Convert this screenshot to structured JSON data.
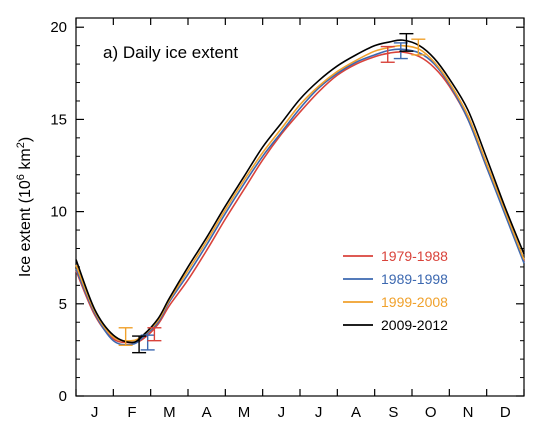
{
  "chart_data": {
    "type": "line",
    "title": "a) Daily ice extent",
    "ylabel_main": "Ice extent (10",
    "ylabel_sup1": "6",
    "ylabel_mid": " km",
    "ylabel_sup2": "2",
    "ylabel_end": ")",
    "xlabel": "",
    "ylim": [
      0,
      20.5
    ],
    "yticks": [
      0,
      5,
      10,
      15,
      20
    ],
    "xlim": [
      0,
      12
    ],
    "categories": [
      "J",
      "F",
      "M",
      "A",
      "M",
      "J",
      "J",
      "A",
      "S",
      "O",
      "N",
      "D"
    ],
    "grid": false,
    "legend_position": "bottom-right",
    "series": [
      {
        "name": "1979-1988",
        "color": "#d9433b",
        "x": [
          0,
          0.5,
          1.0,
          1.5,
          1.8,
          2.2,
          2.5,
          3.0,
          3.5,
          4.0,
          4.5,
          5.0,
          5.5,
          6.0,
          6.5,
          7.0,
          7.5,
          8.0,
          8.4,
          8.75,
          9.2,
          9.6,
          10.0,
          10.5,
          11.0,
          11.5,
          12.0
        ],
        "y": [
          6.8,
          4.4,
          3.1,
          2.9,
          3.1,
          3.9,
          4.9,
          6.3,
          7.9,
          9.6,
          11.2,
          12.8,
          14.2,
          15.4,
          16.5,
          17.4,
          18.0,
          18.4,
          18.6,
          18.65,
          18.4,
          17.8,
          16.8,
          15.0,
          12.4,
          9.9,
          7.3
        ]
      },
      {
        "name": "1989-1998",
        "color": "#3c68b0",
        "x": [
          0,
          0.5,
          1.0,
          1.5,
          1.8,
          2.2,
          2.5,
          3.0,
          3.5,
          4.0,
          4.5,
          5.0,
          5.5,
          6.0,
          6.5,
          7.0,
          7.5,
          8.0,
          8.4,
          8.75,
          9.2,
          9.6,
          10.0,
          10.5,
          11.0,
          11.5,
          12.0
        ],
        "y": [
          6.9,
          4.5,
          3.0,
          2.8,
          3.2,
          4.0,
          5.1,
          6.6,
          8.2,
          9.9,
          11.5,
          13.0,
          14.3,
          15.6,
          16.7,
          17.5,
          18.1,
          18.5,
          18.75,
          18.8,
          18.6,
          18.0,
          16.9,
          15.0,
          12.4,
          9.8,
          7.2
        ]
      },
      {
        "name": "1999-2008",
        "color": "#f0a12c",
        "x": [
          0,
          0.5,
          1.0,
          1.5,
          1.8,
          2.2,
          2.5,
          3.0,
          3.5,
          4.0,
          4.5,
          5.0,
          5.5,
          6.0,
          6.5,
          7.0,
          7.5,
          8.0,
          8.4,
          8.75,
          9.2,
          9.6,
          10.0,
          10.5,
          11.0,
          11.5,
          12.0
        ],
        "y": [
          7.1,
          4.6,
          3.2,
          3.0,
          3.3,
          4.1,
          5.2,
          6.8,
          8.4,
          10.1,
          11.7,
          13.2,
          14.5,
          15.8,
          16.8,
          17.6,
          18.2,
          18.7,
          18.9,
          19.0,
          18.8,
          18.1,
          17.0,
          15.2,
          12.6,
          10.0,
          7.4
        ]
      },
      {
        "name": "2009-2012",
        "color": "#000000",
        "x": [
          0,
          0.5,
          1.0,
          1.5,
          1.8,
          2.2,
          2.5,
          3.0,
          3.5,
          4.0,
          4.5,
          5.0,
          5.5,
          6.0,
          6.5,
          7.0,
          7.5,
          8.0,
          8.4,
          8.75,
          9.2,
          9.6,
          10.0,
          10.5,
          11.0,
          11.5,
          12.0
        ],
        "y": [
          7.4,
          4.7,
          3.3,
          2.9,
          3.3,
          4.2,
          5.3,
          7.0,
          8.6,
          10.3,
          11.9,
          13.5,
          14.8,
          16.1,
          17.1,
          17.9,
          18.5,
          19.0,
          19.2,
          19.3,
          19.0,
          18.3,
          17.2,
          15.5,
          12.9,
          10.2,
          7.7
        ]
      }
    ],
    "error_bars": [
      {
        "series": "1999-2008",
        "x": 1.33,
        "low": 2.75,
        "high": 3.7
      },
      {
        "series": "1989-1998",
        "x": 1.92,
        "low": 2.5,
        "high": 3.3
      },
      {
        "series": "1979-1988",
        "x": 2.1,
        "low": 3.0,
        "high": 3.7
      },
      {
        "series": "2009-2012",
        "x": 1.69,
        "low": 2.35,
        "high": 3.25
      },
      {
        "series": "1979-1988",
        "x": 8.35,
        "low": 18.1,
        "high": 18.95
      },
      {
        "series": "1989-1998",
        "x": 8.7,
        "low": 18.3,
        "high": 19.15
      },
      {
        "series": "2009-2012",
        "x": 8.85,
        "low": 18.7,
        "high": 19.65
      },
      {
        "series": "1999-2008",
        "x": 9.17,
        "low": 18.5,
        "high": 19.35
      }
    ]
  }
}
